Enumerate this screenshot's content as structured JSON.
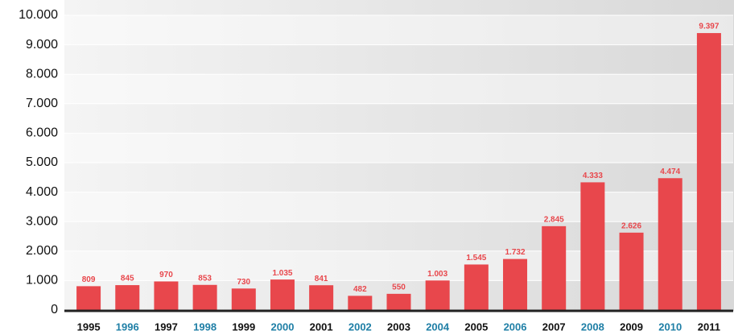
{
  "chart_data": {
    "type": "bar",
    "categories": [
      "1995",
      "1996",
      "1997",
      "1998",
      "1999",
      "2000",
      "2001",
      "2002",
      "2003",
      "2004",
      "2005",
      "2006",
      "2007",
      "2008",
      "2009",
      "2010",
      "2011"
    ],
    "category_colors": [
      "#111111",
      "#1f7fa6",
      "#111111",
      "#1f7fa6",
      "#111111",
      "#1f7fa6",
      "#111111",
      "#1f7fa6",
      "#111111",
      "#1f7fa6",
      "#111111",
      "#1f7fa6",
      "#111111",
      "#1f7fa6",
      "#111111",
      "#1f7fa6",
      "#111111"
    ],
    "values": [
      809,
      845,
      970,
      853,
      730,
      1035,
      841,
      482,
      550,
      1003,
      1545,
      1732,
      2845,
      4333,
      2626,
      4474,
      9397
    ],
    "value_labels": [
      "809",
      "845",
      "970",
      "853",
      "730",
      "1.035",
      "841",
      "482",
      "550",
      "1.003",
      "1.545",
      "1.732",
      "2.845",
      "4.333",
      "2.626",
      "4.474",
      "9.397"
    ],
    "color": "#e8474c",
    "ylim": [
      0,
      10000
    ],
    "yticks": [
      {
        "value": 0,
        "label": "0"
      },
      {
        "value": 1000,
        "label": "1.000"
      },
      {
        "value": 2000,
        "label": "2.000"
      },
      {
        "value": 3000,
        "label": "3.000"
      },
      {
        "value": 4000,
        "label": "4.000"
      },
      {
        "value": 5000,
        "label": "5.000"
      },
      {
        "value": 6000,
        "label": "6.000"
      },
      {
        "value": 7000,
        "label": "7.000"
      },
      {
        "value": 8000,
        "label": "8.000"
      },
      {
        "value": 9000,
        "label": "9.000"
      },
      {
        "value": 10000,
        "label": "10.000"
      }
    ],
    "grid": true
  }
}
